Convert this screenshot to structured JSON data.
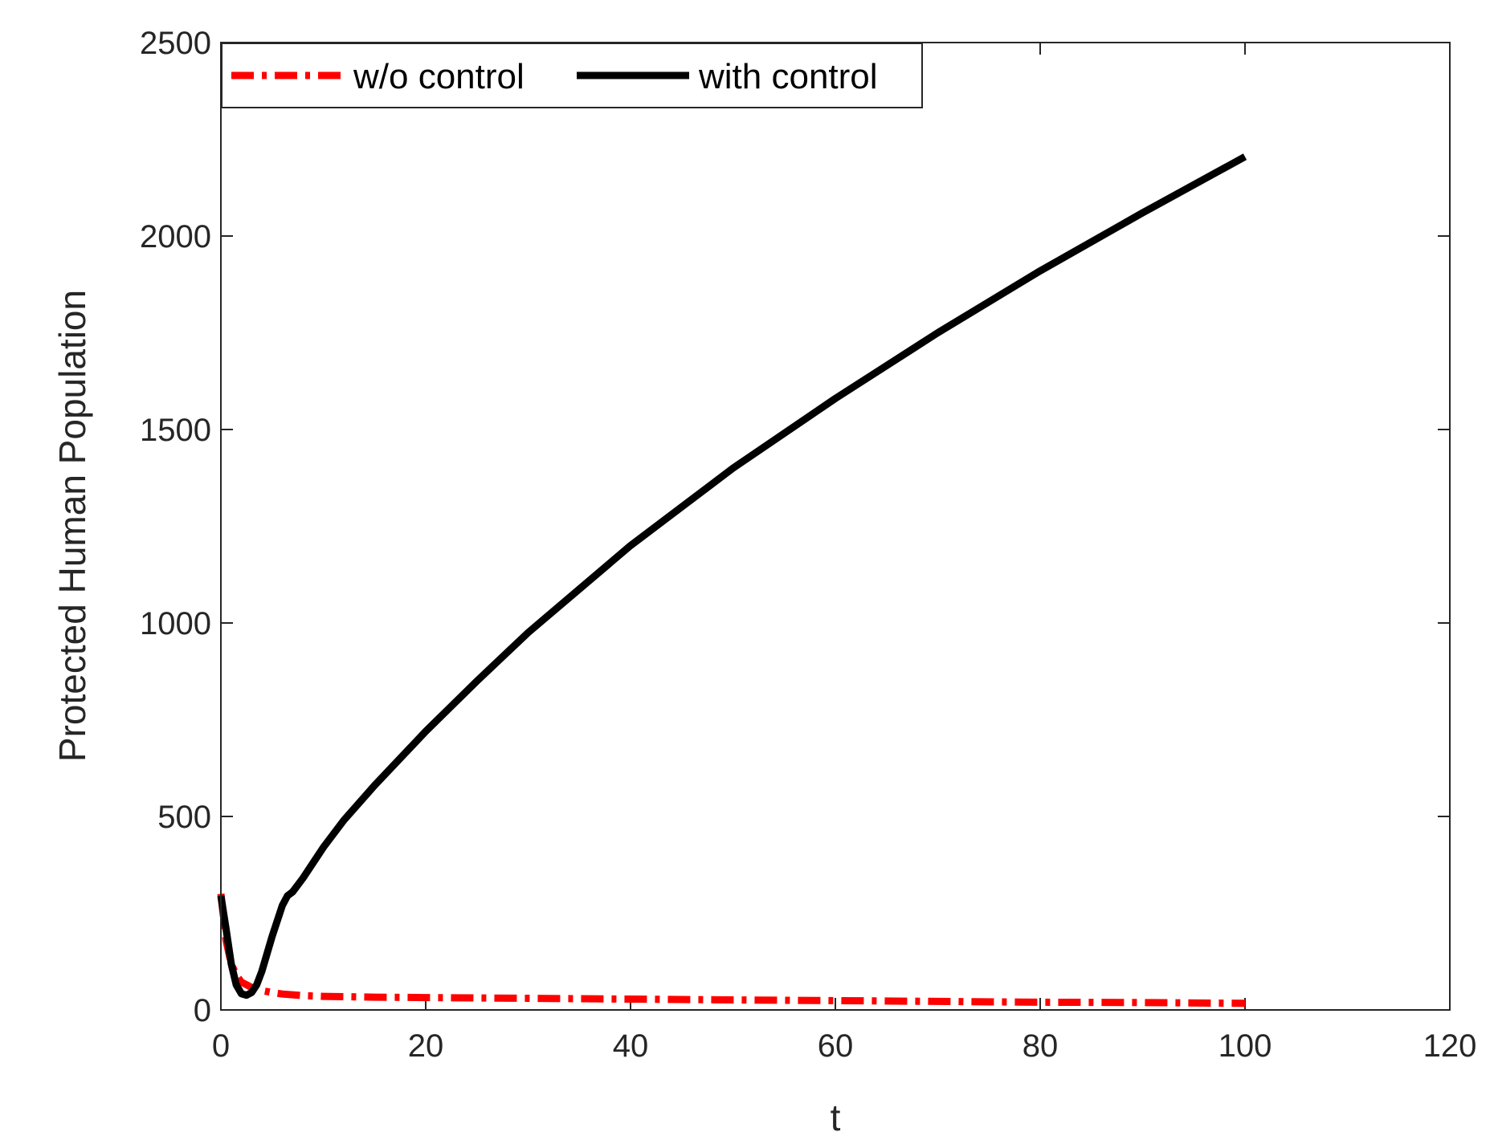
{
  "chart_data": {
    "type": "line",
    "title": "",
    "xlabel": "t",
    "ylabel": "Protected Human Population",
    "xlim": [
      0,
      120
    ],
    "ylim": [
      0,
      2500
    ],
    "xticks": [
      0,
      20,
      40,
      60,
      80,
      100,
      120
    ],
    "yticks": [
      0,
      500,
      1000,
      1500,
      2000,
      2500
    ],
    "xtick_labels": [
      "0",
      "20",
      "40",
      "60",
      "80",
      "100",
      "120"
    ],
    "ytick_labels": [
      "0",
      "500",
      "1000",
      "1500",
      "2000",
      "2500"
    ],
    "grid": false,
    "box": true,
    "legend": {
      "placement": "top-left",
      "orientation": "horizontal"
    },
    "series": [
      {
        "name": "w/o control",
        "color": "#ff0000",
        "style": "dash-dot",
        "x": [
          0,
          0.5,
          1,
          1.5,
          2,
          3,
          4,
          5,
          6,
          8,
          10,
          15,
          20,
          30,
          40,
          50,
          60,
          70,
          80,
          90,
          100
        ],
        "y": [
          300,
          180,
          120,
          90,
          72,
          58,
          50,
          45,
          41,
          37,
          35,
          33,
          32,
          30,
          28,
          26,
          24,
          22,
          20,
          19,
          17
        ]
      },
      {
        "name": "with control",
        "color": "#000000",
        "style": "solid",
        "x": [
          0,
          0.5,
          1,
          1.5,
          2,
          2.5,
          3,
          3.5,
          4,
          5,
          6,
          6.5,
          7,
          8,
          10,
          12,
          15,
          20,
          25,
          30,
          40,
          50,
          60,
          70,
          80,
          90,
          100
        ],
        "y": [
          295,
          210,
          120,
          65,
          42,
          38,
          45,
          65,
          100,
          190,
          270,
          295,
          305,
          340,
          420,
          490,
          580,
          720,
          850,
          975,
          1200,
          1400,
          1580,
          1750,
          1910,
          2060,
          2205
        ]
      }
    ]
  }
}
